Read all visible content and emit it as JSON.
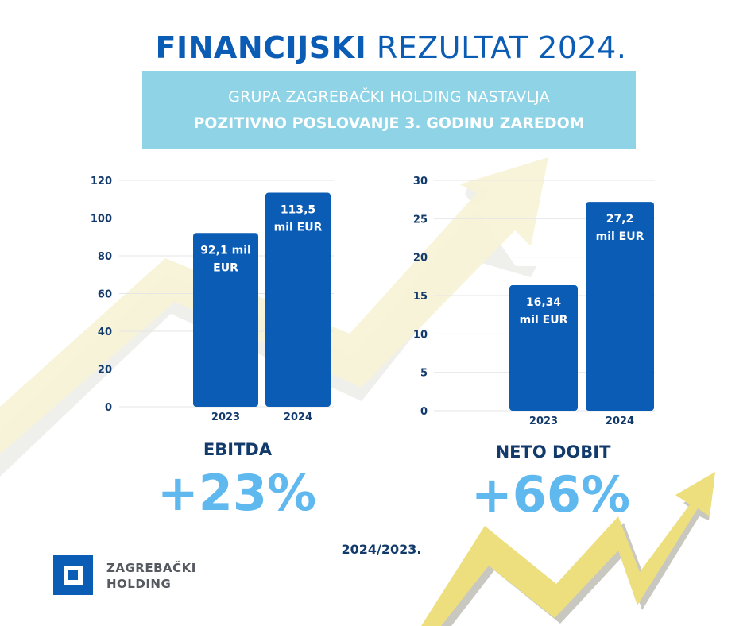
{
  "title": {
    "bold": "FINANCIJSKI",
    "rest": "REZULTAT 2024."
  },
  "banner": {
    "line1": "GRUPA ZAGREBAČKI HOLDING NASTAVLJA",
    "line2": "POZITIVNO POSLOVANJE 3. GODINU ZAREDOM"
  },
  "chart_data": [
    {
      "type": "bar",
      "name": "EBITDA",
      "categories": [
        "2023",
        "2024"
      ],
      "values": [
        92.1,
        113.5
      ],
      "data_labels": [
        [
          "92,1 mil",
          "EUR"
        ],
        [
          "113,5",
          "mil EUR"
        ]
      ],
      "ylim": [
        0,
        120
      ],
      "yticks": [
        0,
        20,
        40,
        60,
        80,
        100,
        120
      ],
      "grid": true,
      "bar_color": "#0B5CB5"
    },
    {
      "type": "bar",
      "name": "NETO DOBIT",
      "categories": [
        "2023",
        "2024"
      ],
      "values": [
        16.34,
        27.2
      ],
      "data_labels": [
        [
          "16,34",
          "mil EUR"
        ],
        [
          "27,2",
          "mil EUR"
        ]
      ],
      "ylim": [
        0,
        30
      ],
      "yticks": [
        0,
        5,
        10,
        15,
        20,
        25,
        30
      ],
      "grid": true,
      "bar_color": "#0B5CB5"
    }
  ],
  "kpis": [
    {
      "label": "EBITDA",
      "value": "+23%"
    },
    {
      "label": "NETO DOBIT",
      "value": "+66%"
    }
  ],
  "period": "2024/2023.",
  "logo": {
    "line1": "ZAGREBAČKI",
    "line2": "HOLDING"
  },
  "colors": {
    "primary": "#0B5CB5",
    "accent": "#5FB8EE",
    "banner": "#8ED3E6",
    "dark": "#123A6B"
  }
}
